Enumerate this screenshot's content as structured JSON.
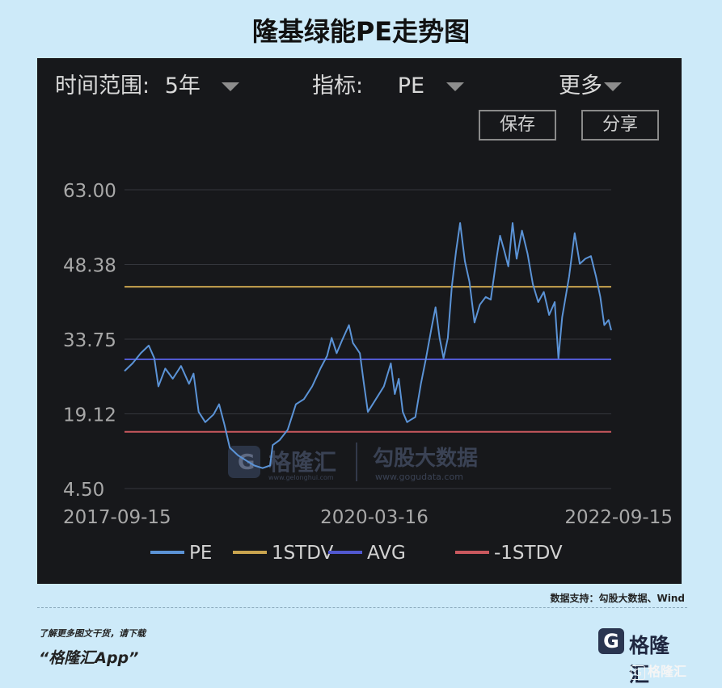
{
  "page_title": "隆基绿能PE走势图",
  "controls": {
    "time_range_label": "时间范围:",
    "time_range_value": "5年",
    "indicator_label": "指标:",
    "indicator_value": "PE",
    "more_label": "更多",
    "save_label": "保存",
    "share_label": "分享"
  },
  "watermark": {
    "brand": "格隆汇",
    "brand_url": "www.gelonghui.com",
    "source_brand": "勾股大数据",
    "source_url": "www.gogudata.com"
  },
  "source_note": "数据支持：勾股大数据、Wind",
  "promo": {
    "line1": "了解更多图文干货，请下载",
    "line2": "“格隆汇App”"
  },
  "logo_text": "格隆汇",
  "corner_watermark": "格隆汇",
  "colors": {
    "background": "#17181b",
    "pe": "#5b93d6",
    "stdv_plus": "#c9a44f",
    "avg": "#5158d0",
    "stdv_minus": "#c9585e"
  },
  "chart_data": {
    "type": "line",
    "x_ticks": [
      "2017-09-15",
      "2020-03-16",
      "2022-09-15"
    ],
    "x_range": [
      "2017-09-15",
      "2022-09-15"
    ],
    "y_ticks": [
      4.5,
      19.12,
      33.75,
      48.38,
      63.0
    ],
    "y_tick_labels": [
      "4.50",
      "19.12",
      "33.75",
      "48.38",
      "63.00"
    ],
    "ylim": [
      4.5,
      63.0
    ],
    "grid": true,
    "legend_position": "bottom",
    "series": [
      {
        "name": "PE",
        "color": "#5b93d6",
        "points": [
          [
            "2017-09-15",
            27.5
          ],
          [
            "2017-10-15",
            29.0
          ],
          [
            "2017-11-15",
            31.0
          ],
          [
            "2017-12-15",
            32.5
          ],
          [
            "2018-01-05",
            30.0
          ],
          [
            "2018-01-20",
            24.5
          ],
          [
            "2018-02-15",
            28.0
          ],
          [
            "2018-03-15",
            26.0
          ],
          [
            "2018-04-15",
            28.5
          ],
          [
            "2018-05-15",
            25.0
          ],
          [
            "2018-06-01",
            27.0
          ],
          [
            "2018-06-20",
            19.5
          ],
          [
            "2018-07-15",
            17.5
          ],
          [
            "2018-08-15",
            19.0
          ],
          [
            "2018-09-05",
            21.0
          ],
          [
            "2018-09-25",
            17.0
          ],
          [
            "2018-10-15",
            12.5
          ],
          [
            "2018-11-15",
            11.0
          ],
          [
            "2018-12-15",
            10.0
          ],
          [
            "2019-01-15",
            9.0
          ],
          [
            "2019-02-15",
            8.5
          ],
          [
            "2019-03-15",
            9.0
          ],
          [
            "2019-03-25",
            13.0
          ],
          [
            "2019-04-20",
            14.0
          ],
          [
            "2019-05-20",
            16.0
          ],
          [
            "2019-06-20",
            21.0
          ],
          [
            "2019-07-20",
            22.0
          ],
          [
            "2019-08-20",
            24.5
          ],
          [
            "2019-09-20",
            28.0
          ],
          [
            "2019-10-15",
            30.5
          ],
          [
            "2019-11-01",
            34.0
          ],
          [
            "2019-11-20",
            31.0
          ],
          [
            "2019-12-10",
            33.5
          ],
          [
            "2020-01-05",
            36.5
          ],
          [
            "2020-01-20",
            33.0
          ],
          [
            "2020-02-15",
            31.0
          ],
          [
            "2020-03-01",
            25.0
          ],
          [
            "2020-03-16",
            19.5
          ],
          [
            "2020-04-15",
            22.0
          ],
          [
            "2020-05-15",
            24.5
          ],
          [
            "2020-06-10",
            29.0
          ],
          [
            "2020-06-25",
            23.0
          ],
          [
            "2020-07-10",
            26.0
          ],
          [
            "2020-07-25",
            19.5
          ],
          [
            "2020-08-10",
            17.5
          ],
          [
            "2020-08-25",
            18.0
          ],
          [
            "2020-09-10",
            18.5
          ],
          [
            "2020-10-01",
            25.0
          ],
          [
            "2020-10-20",
            30.0
          ],
          [
            "2020-11-10",
            36.0
          ],
          [
            "2020-11-25",
            40.0
          ],
          [
            "2020-12-10",
            34.0
          ],
          [
            "2020-12-25",
            30.0
          ],
          [
            "2021-01-10",
            34.0
          ],
          [
            "2021-01-25",
            44.0
          ],
          [
            "2021-02-10",
            51.0
          ],
          [
            "2021-02-25",
            56.5
          ],
          [
            "2021-03-15",
            49.0
          ],
          [
            "2021-04-01",
            45.0
          ],
          [
            "2021-04-20",
            37.0
          ],
          [
            "2021-05-10",
            40.5
          ],
          [
            "2021-06-01",
            42.0
          ],
          [
            "2021-06-20",
            41.5
          ],
          [
            "2021-07-10",
            49.0
          ],
          [
            "2021-07-25",
            54.0
          ],
          [
            "2021-08-10",
            51.0
          ],
          [
            "2021-08-25",
            48.0
          ],
          [
            "2021-09-10",
            56.5
          ],
          [
            "2021-09-25",
            49.5
          ],
          [
            "2021-10-15",
            55.0
          ],
          [
            "2021-11-05",
            50.5
          ],
          [
            "2021-11-25",
            44.5
          ],
          [
            "2021-12-15",
            41.0
          ],
          [
            "2022-01-05",
            43.0
          ],
          [
            "2022-01-25",
            38.5
          ],
          [
            "2022-02-15",
            41.0
          ],
          [
            "2022-03-01",
            30.0
          ],
          [
            "2022-03-15",
            38.0
          ],
          [
            "2022-04-10",
            46.0
          ],
          [
            "2022-05-01",
            54.5
          ],
          [
            "2022-05-20",
            48.5
          ],
          [
            "2022-06-10",
            49.5
          ],
          [
            "2022-07-01",
            50.0
          ],
          [
            "2022-07-20",
            46.0
          ],
          [
            "2022-08-05",
            42.0
          ],
          [
            "2022-08-20",
            36.5
          ],
          [
            "2022-09-05",
            37.5
          ],
          [
            "2022-09-15",
            35.5
          ]
        ]
      },
      {
        "name": "1STDV",
        "color": "#c9a44f",
        "value": 44.0
      },
      {
        "name": "AVG",
        "color": "#5158d0",
        "value": 29.8
      },
      {
        "name": "-1STDV",
        "color": "#c9585e",
        "value": 15.6
      }
    ]
  }
}
